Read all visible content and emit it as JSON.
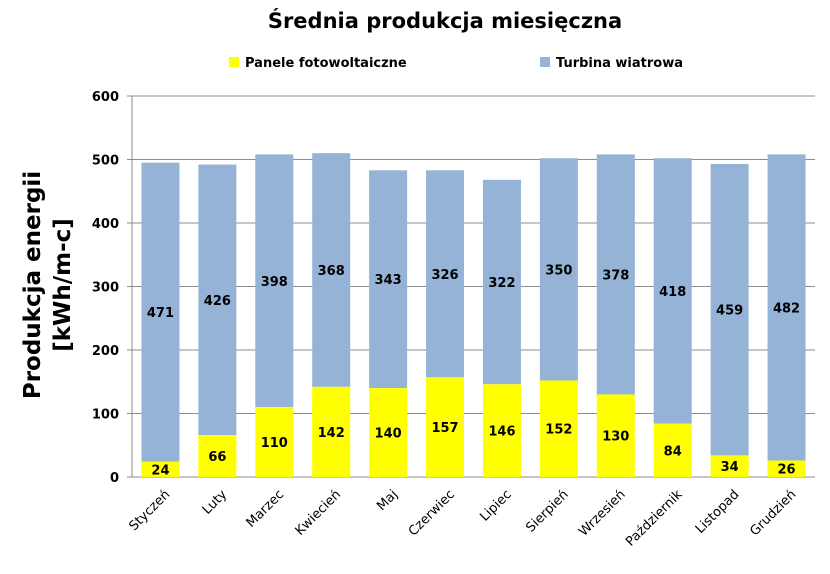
{
  "chart_data": {
    "type": "bar",
    "stacked": true,
    "title": "Średnia produkcja miesięczna",
    "ylabel": [
      "Produkcja energii",
      "[kWh/m-c]"
    ],
    "xlabel": "",
    "ylim": [
      0,
      600
    ],
    "yticks": [
      0,
      100,
      200,
      300,
      400,
      500,
      600
    ],
    "grid": true,
    "legend_position": "top",
    "categories": [
      "Styczeń",
      "Luty",
      "Marzec",
      "Kwiecień",
      "Maj",
      "Czerwiec",
      "Lipiec",
      "Sierpień",
      "Wrzesień",
      "Październik",
      "Listopad",
      "Grudzień"
    ],
    "series": [
      {
        "name": "Panele fotowoltaiczne",
        "color": "#ffff00",
        "values": [
          24,
          66,
          110,
          142,
          140,
          157,
          146,
          152,
          130,
          84,
          34,
          26
        ]
      },
      {
        "name": "Turbina wiatrowa",
        "color": "#95b3d7",
        "values": [
          471,
          426,
          398,
          368,
          343,
          326,
          322,
          350,
          378,
          418,
          459,
          482
        ]
      }
    ]
  }
}
